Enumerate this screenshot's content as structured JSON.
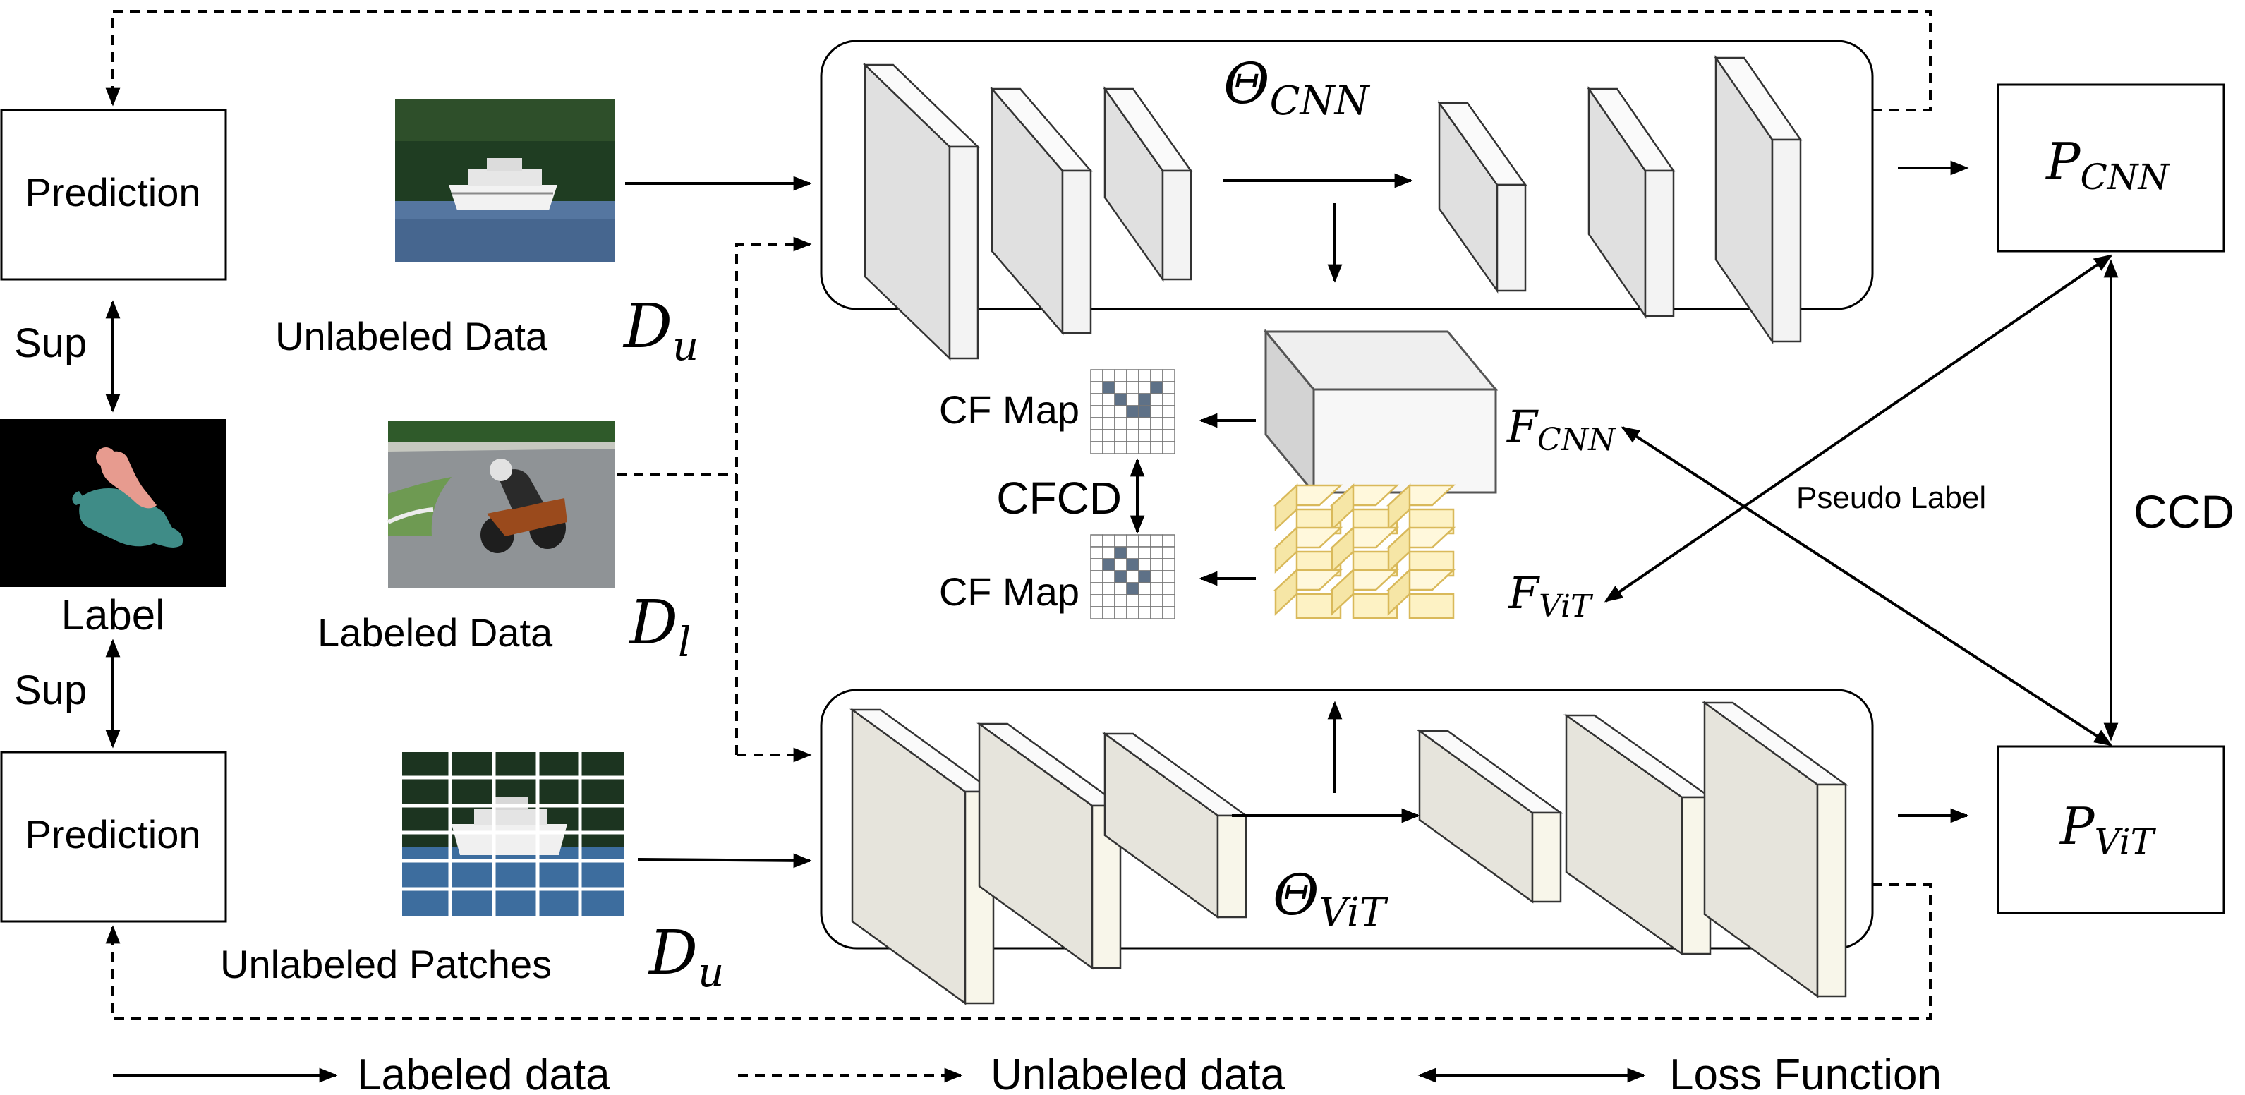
{
  "left": {
    "prediction_top": "Prediction",
    "sup_top": "Sup",
    "label": "Label",
    "sup_bottom": "Sup",
    "prediction_bottom": "Prediction"
  },
  "inputs": {
    "unlabeled_data": "Unlabeled Data",
    "unlabeled_data_symbol": "D",
    "unlabeled_data_sub": "u",
    "labeled_data": "Labeled Data",
    "labeled_data_symbol": "D",
    "labeled_data_sub": "l",
    "unlabeled_patches": "Unlabeled Patches",
    "unlabeled_patches_symbol": "D",
    "unlabeled_patches_sub": "u"
  },
  "networks": {
    "cnn_symbol": "Θ",
    "cnn_sub": "CNN",
    "vit_symbol": "Θ",
    "vit_sub": "ViT"
  },
  "features": {
    "cf_map_top": "CF Map",
    "cf_map_bottom": "CF Map",
    "cfcd": "CFCD",
    "f_cnn_symbol": "F",
    "f_cnn_sub": "CNN",
    "f_vit_symbol": "F",
    "f_vit_sub": "ViT"
  },
  "outputs": {
    "p_cnn_symbol": "P",
    "p_cnn_sub": "CNN",
    "p_vit_symbol": "P",
    "p_vit_sub": "ViT",
    "ccd": "CCD",
    "pseudo_label": "Pseudo Label"
  },
  "legend": {
    "labeled": "Labeled data",
    "unlabeled": "Unlabeled data",
    "loss": "Loss Function"
  },
  "colors": {
    "cnn_layer": "#e0e0e0",
    "vit_layer": "#e6e4dc",
    "vit_feature": "#fdf2c4",
    "vit_feature_stroke": "#d9b95a",
    "cf_map_cell": "#5e7187",
    "label_mask": "#3f8c87"
  }
}
